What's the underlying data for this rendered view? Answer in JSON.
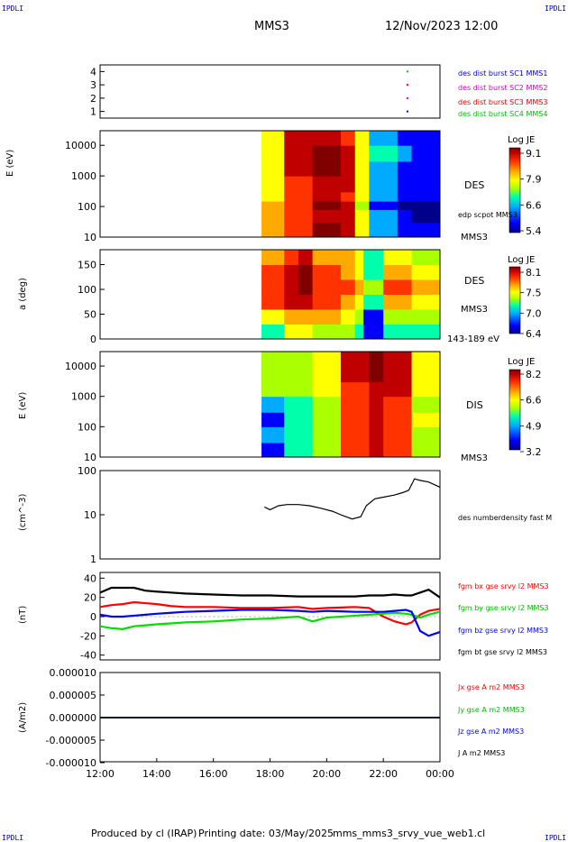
{
  "header": {
    "corner_left_top": "IPDLI",
    "corner_right_top": "IPDLI",
    "spacecraft": "MMS3",
    "datetime": "12/Nov/2023 12:00",
    "corner_left_bottom": "IPDLI",
    "corner_right_bottom": "IPDLI"
  },
  "footer": {
    "produced_by": "Produced by cl (IRAP)",
    "printing_date": "Printing date: 03/May/2025",
    "filename": "mms_mms3_srvy_vue_web1.cl"
  },
  "colors": {
    "spectrogram_colormap": [
      "#00008b",
      "#0000ff",
      "#00aaff",
      "#00ffaa",
      "#aaff00",
      "#ffff00",
      "#ffaa00",
      "#ff3300",
      "#c00000",
      "#800000"
    ]
  },
  "x_axis": {
    "tick_labels": [
      "12:00",
      "14:00",
      "16:00",
      "18:00",
      "20:00",
      "22:00",
      "00:00"
    ],
    "start_hours": 12,
    "end_hours": 24
  },
  "panels": {
    "burst": {
      "tick_labels": [
        "4",
        "3",
        "2",
        "1"
      ],
      "legend": [
        "des dist burst SC1 MMS1",
        "des dist burst SC2 MMS2",
        "des dist burst SC3 MMS3",
        "des dist burst SC4 MMS4"
      ],
      "legend_colors": [
        "#0000cc",
        "#cc00cc",
        "#dd0000",
        "#00bb00"
      ]
    },
    "des_energy": {
      "ylabel": "E (eV)",
      "tick_labels": [
        "10000",
        "1000",
        "100",
        "10"
      ],
      "right_label": "DES",
      "right_label2": "MMS3",
      "overlay_label": "edp scpot MMS3",
      "colorbar_title": "Log JE",
      "colorbar_ticks": [
        "9.1",
        "7.9",
        "6.6",
        "5.4"
      ]
    },
    "des_pitch": {
      "ylabel": "a (deg)",
      "tick_labels": [
        "150",
        "100",
        "50",
        "0"
      ],
      "right_label": "DES",
      "right_label2": "MMS3",
      "energy_range": "143-189 eV",
      "colorbar_title": "Log JE",
      "colorbar_ticks": [
        "8.1",
        "7.5",
        "7.0",
        "6.4"
      ]
    },
    "dis_energy": {
      "ylabel": "E (eV)",
      "tick_labels": [
        "10000",
        "1000",
        "100",
        "10"
      ],
      "right_label": "DIS",
      "right_label2": "MMS3",
      "colorbar_title": "Log JE",
      "colorbar_ticks": [
        "8.2",
        "6.6",
        "4.9",
        "3.2"
      ]
    },
    "density": {
      "ylabel": "(cm^-3)",
      "tick_labels": [
        "100",
        "10",
        "1"
      ],
      "legend": "des numberdensity fast M"
    },
    "bfield": {
      "ylabel": "(nT)",
      "tick_labels": [
        "40",
        "20",
        "0",
        "-20",
        "-40"
      ],
      "legend": [
        "fgm bx gse srvy l2 MMS3",
        "fgm by gse srvy l2 MMS3",
        "fgm bz gse srvy l2 MMS3",
        "fgm bt gse srvy l2 MMS3"
      ],
      "legend_colors": [
        "#ff0000",
        "#00dd00",
        "#0000ff",
        "#000000"
      ]
    },
    "current": {
      "ylabel": "(A/m2)",
      "tick_labels": [
        "0.000010",
        "0.000005",
        "0.000000",
        "-0.000005",
        "-0.000010"
      ],
      "legend": [
        "Jx gse A m2 MMS3",
        "Jy gse A m2 MMS3",
        "Jz gse A m2 MMS3",
        "J A m2 MMS3"
      ],
      "legend_colors": [
        "#ff0000",
        "#00dd00",
        "#0000ff",
        "#000000"
      ]
    }
  },
  "chart_data": [
    {
      "type": "scatter",
      "title": "",
      "x_unit": "hours UT",
      "ylim": [
        0.5,
        4.5
      ],
      "series": [
        {
          "name": "des dist burst SC1 MMS1",
          "x": [
            22.85
          ],
          "y": [
            1
          ]
        },
        {
          "name": "des dist burst SC2 MMS2",
          "x": [
            22.85
          ],
          "y": [
            2
          ]
        },
        {
          "name": "des dist burst SC3 MMS3",
          "x": [
            22.85
          ],
          "y": [
            3
          ]
        },
        {
          "name": "des dist burst SC4 MMS4",
          "x": [
            22.85
          ],
          "y": [
            4
          ]
        }
      ]
    },
    {
      "type": "heatmap",
      "title": "DES",
      "ylabel": "E (eV)",
      "y_scale": "log",
      "ylim": [
        10,
        30000
      ],
      "zlabel": "Log JE",
      "zlim": [
        5.4,
        9.1
      ],
      "data_start_hours": 17.7,
      "x_hours": [
        17.7,
        18.5,
        19.5,
        20.5,
        21.0,
        21.5,
        22.5,
        23.0,
        24.0
      ],
      "y_energy_eV": [
        10,
        30,
        80,
        150,
        300,
        1000,
        3000,
        10000,
        30000
      ],
      "values": [
        [
          7.8,
          8.3,
          8.9,
          8.6,
          7.3,
          6.2,
          5.9,
          5.7,
          5.6
        ],
        [
          7.8,
          8.2,
          8.8,
          8.7,
          7.4,
          6.1,
          5.7,
          5.5,
          5.6
        ],
        [
          7.7,
          8.3,
          8.9,
          8.5,
          7.2,
          6.0,
          5.6,
          5.6,
          5.8
        ],
        [
          7.6,
          8.2,
          8.7,
          8.4,
          7.3,
          6.1,
          5.8,
          5.7,
          5.9
        ],
        [
          7.6,
          8.3,
          8.8,
          8.6,
          7.4,
          6.2,
          5.9,
          5.8,
          6.0
        ],
        [
          7.4,
          8.6,
          9.0,
          8.7,
          7.6,
          6.4,
          6.0,
          5.9,
          6.0
        ],
        [
          7.5,
          8.7,
          9.0,
          8.6,
          7.5,
          6.5,
          6.1,
          6.0,
          6.1
        ],
        [
          7.6,
          8.8,
          8.7,
          8.3,
          7.3,
          6.4,
          6.0,
          5.9,
          6.0
        ],
        [
          7.7,
          8.9,
          8.8,
          8.2,
          7.2,
          6.3,
          5.9,
          5.8,
          5.9
        ]
      ]
    },
    {
      "type": "heatmap",
      "title": "DES 143-189 eV",
      "ylabel": "a (deg)",
      "ylim": [
        0,
        180
      ],
      "zlabel": "Log JE",
      "zlim": [
        6.4,
        8.1
      ],
      "data_start_hours": 17.7,
      "x_hours": [
        17.7,
        18.5,
        19.0,
        19.5,
        20.5,
        21.0,
        21.3,
        22.0,
        23.0,
        24.0
      ],
      "y_pitch_deg": [
        0,
        30,
        60,
        90,
        120,
        150,
        180
      ],
      "values": [
        [
          7.0,
          7.3,
          7.4,
          7.2,
          7.1,
          6.9,
          6.5,
          7.0,
          6.9,
          6.8
        ],
        [
          7.4,
          7.6,
          7.6,
          7.5,
          7.3,
          7.1,
          6.6,
          7.2,
          7.1,
          7.0
        ],
        [
          7.7,
          7.9,
          8.0,
          7.7,
          7.6,
          7.3,
          6.9,
          7.5,
          7.4,
          7.3
        ],
        [
          7.8,
          8.0,
          8.1,
          7.8,
          7.7,
          7.5,
          7.1,
          7.7,
          7.6,
          7.4
        ],
        [
          7.7,
          7.9,
          8.1,
          7.7,
          7.6,
          7.4,
          7.0,
          7.5,
          7.4,
          7.3
        ],
        [
          7.6,
          7.8,
          8.0,
          7.6,
          7.5,
          7.3,
          6.9,
          7.3,
          7.2,
          7.1
        ],
        [
          7.5,
          7.7,
          7.8,
          7.5,
          7.4,
          7.2,
          6.8,
          7.2,
          7.1,
          7.0
        ]
      ]
    },
    {
      "type": "heatmap",
      "title": "DIS",
      "ylabel": "E (eV)",
      "y_scale": "log",
      "ylim": [
        10,
        30000
      ],
      "zlabel": "Log JE",
      "zlim": [
        3.2,
        8.2
      ],
      "data_start_hours": 17.7,
      "x_hours": [
        17.7,
        18.5,
        19.5,
        20.5,
        21.5,
        22.0,
        23.0,
        24.0
      ],
      "y_energy_eV": [
        10,
        30,
        100,
        300,
        1000,
        3000,
        10000,
        30000
      ],
      "values": [
        [
          4.0,
          4.6,
          5.4,
          6.9,
          7.6,
          7.0,
          5.6,
          4.4
        ],
        [
          4.1,
          4.7,
          5.5,
          7.0,
          7.7,
          7.1,
          5.5,
          4.3
        ],
        [
          4.0,
          4.6,
          5.6,
          7.1,
          7.8,
          7.2,
          5.7,
          4.5
        ],
        [
          4.1,
          4.7,
          5.6,
          7.0,
          7.7,
          7.1,
          5.6,
          4.4
        ],
        [
          5.4,
          5.6,
          6.0,
          7.2,
          7.9,
          7.6,
          6.0,
          5.4
        ],
        [
          5.5,
          5.6,
          6.0,
          7.4,
          8.0,
          7.8,
          6.1,
          5.5
        ],
        [
          5.5,
          5.6,
          6.1,
          7.5,
          8.1,
          7.8,
          6.0,
          5.5
        ],
        [
          5.6,
          5.6,
          6.0,
          7.4,
          8.1,
          7.7,
          5.9,
          5.4
        ]
      ]
    },
    {
      "type": "line",
      "title": "",
      "ylabel": "(cm^-3)",
      "y_scale": "log",
      "ylim": [
        1,
        100
      ],
      "series": [
        {
          "name": "des numberdensity fast M",
          "x": [
            17.8,
            18.0,
            18.3,
            18.6,
            19.0,
            19.4,
            19.8,
            20.2,
            20.5,
            20.9,
            21.2,
            21.4,
            21.7,
            22.0,
            22.4,
            22.7,
            22.9,
            23.1,
            23.3,
            23.6,
            24.0
          ],
          "y": [
            15,
            13,
            16,
            17,
            17,
            16,
            14,
            12,
            10,
            8,
            9,
            16,
            23,
            25,
            28,
            32,
            36,
            65,
            60,
            55,
            42
          ]
        }
      ]
    },
    {
      "type": "line",
      "title": "",
      "ylabel": "(nT)",
      "ylim": [
        -45,
        45
      ],
      "x_hours": [
        12.0,
        12.4,
        12.8,
        13.2,
        13.6,
        14.0,
        14.5,
        15.0,
        16.0,
        17.0,
        18.0,
        19.0,
        19.5,
        20.0,
        21.0,
        21.5,
        22.0,
        22.4,
        22.8,
        23.0,
        23.3,
        23.6,
        24.0
      ],
      "series": [
        {
          "name": "fgm bx gse srvy l2 MMS3",
          "values": [
            10,
            12,
            13,
            15,
            14,
            13,
            11,
            10,
            10,
            9,
            9,
            10,
            8,
            9,
            10,
            9,
            0,
            -5,
            -8,
            -6,
            2,
            6,
            8
          ]
        },
        {
          "name": "fgm by gse srvy l2 MMS3",
          "values": [
            -10,
            -12,
            -13,
            -10,
            -9,
            -8,
            -7,
            -6,
            -5,
            -3,
            -2,
            0,
            -5,
            -1,
            1,
            2,
            3,
            4,
            3,
            2,
            -1,
            2,
            5
          ]
        },
        {
          "name": "fgm bz gse srvy l2 MMS3",
          "values": [
            2,
            0,
            0,
            1,
            2,
            3,
            4,
            5,
            6,
            7,
            7,
            6,
            5,
            6,
            5,
            5,
            5,
            6,
            7,
            5,
            -15,
            -20,
            -16
          ]
        },
        {
          "name": "fgm bt gse srvy l2 MMS3",
          "values": [
            25,
            30,
            30,
            30,
            27,
            26,
            25,
            24,
            23,
            22,
            22,
            21,
            21,
            21,
            21,
            22,
            22,
            23,
            22,
            22,
            25,
            28,
            20
          ]
        }
      ]
    },
    {
      "type": "line",
      "title": "",
      "ylabel": "(A/m2)",
      "ylim": [
        -1e-05,
        1e-05
      ],
      "x_hours": [
        12.0,
        12.5,
        13.0,
        13.5,
        14.0,
        16.0,
        18.0,
        20.0,
        22.0,
        23.0,
        23.5,
        24.0
      ],
      "series": [
        {
          "name": "Jx gse A m2 MMS3",
          "values": [
            0,
            0,
            0,
            0,
            0,
            0,
            0,
            0,
            0,
            0,
            0,
            0
          ]
        },
        {
          "name": "Jy gse A m2 MMS3",
          "values": [
            0,
            0,
            0,
            0,
            0,
            0,
            0,
            0,
            0,
            0,
            0,
            0
          ]
        },
        {
          "name": "Jz gse A m2 MMS3",
          "values": [
            0,
            0,
            0,
            0,
            0,
            0,
            0,
            0,
            0,
            0,
            0,
            0
          ]
        },
        {
          "name": "J A m2 MMS3",
          "values": [
            0,
            0,
            0,
            0,
            0,
            0,
            0,
            0,
            0,
            0,
            0,
            0
          ]
        }
      ]
    }
  ]
}
